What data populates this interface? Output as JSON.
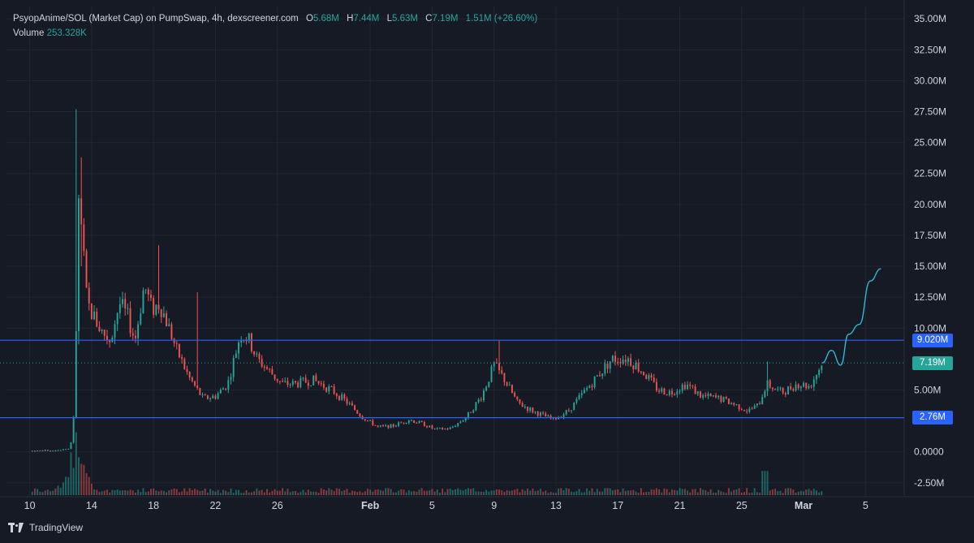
{
  "header": {
    "title": "PsyopAnime/SOL (Market Cap) on PumpSwap, 4h, dexscreener.com",
    "o_label": "O",
    "o_value": "5.68M",
    "h_label": "H",
    "h_value": "7.44M",
    "l_label": "L",
    "l_value": "5.63M",
    "c_label": "C",
    "c_value": "7.19M",
    "change": "1.51M (+26.60%)",
    "volume_label": "Volume",
    "volume_value": "253.328K"
  },
  "branding": {
    "logo_text": "TradingView",
    "icon": "tradingview-logo-icon"
  },
  "colors": {
    "background": "#161a25",
    "grid": "#222632",
    "up": "#26a69a",
    "down": "#ef5350",
    "level_line": "#2962ff",
    "projection": "#2fb7d6",
    "text": "#d1d4dc"
  },
  "chart_data": {
    "type": "candlestick",
    "y_unit": "market cap (USD)",
    "ylim": [
      -3500000,
      36000000
    ],
    "y_ticks": [
      "35.00M",
      "32.50M",
      "30.00M",
      "27.50M",
      "25.00M",
      "22.50M",
      "20.00M",
      "17.50M",
      "15.00M",
      "12.50M",
      "10.00M",
      "5.00M",
      "0.0000",
      "-2.50M"
    ],
    "y_tick_values": [
      35000000,
      32500000,
      30000000,
      27500000,
      25000000,
      22500000,
      20000000,
      17500000,
      15000000,
      12500000,
      10000000,
      5000000,
      0,
      -2500000
    ],
    "x_ticks": [
      "10",
      "14",
      "18",
      "22",
      "26",
      "Feb",
      "5",
      "9",
      "13",
      "17",
      "21",
      "25",
      "Mar",
      "5"
    ],
    "x_tick_days": [
      0,
      4,
      8,
      12,
      16,
      22,
      26,
      30,
      34,
      38,
      42,
      46,
      50,
      54
    ],
    "bold_x_ticks": [
      "Feb",
      "Mar"
    ],
    "x_range_days": [
      -1.5,
      56.5
    ],
    "grid": true,
    "candle_interval": "4h",
    "price_path_keypoints": [
      [
        0,
        0.08
      ],
      [
        1.5,
        0.12
      ],
      [
        2.5,
        0.25
      ],
      [
        2.8,
        1.2
      ],
      [
        3.0,
        10.0
      ],
      [
        3.1,
        20.5
      ],
      [
        3.35,
        18.0
      ],
      [
        3.7,
        12.0
      ],
      [
        4.1,
        11.0
      ],
      [
        4.6,
        9.8
      ],
      [
        5.2,
        9.0
      ],
      [
        5.8,
        12.0
      ],
      [
        6.3,
        11.0
      ],
      [
        6.8,
        9.0
      ],
      [
        7.4,
        13.5
      ],
      [
        7.9,
        11.5
      ],
      [
        8.4,
        12.0
      ],
      [
        9.0,
        10.0
      ],
      [
        9.5,
        8.2
      ],
      [
        10.3,
        6.0
      ],
      [
        11.2,
        4.3
      ],
      [
        12.0,
        4.5
      ],
      [
        12.8,
        5.5
      ],
      [
        13.2,
        7.5
      ],
      [
        13.6,
        9.5
      ],
      [
        14.1,
        9.2
      ],
      [
        14.7,
        7.5
      ],
      [
        15.5,
        6.5
      ],
      [
        16.3,
        5.5
      ],
      [
        17.2,
        5.5
      ],
      [
        18.3,
        5.8
      ],
      [
        19.5,
        5.0
      ],
      [
        20.5,
        4.0
      ],
      [
        21.5,
        2.8
      ],
      [
        22.5,
        2.0
      ],
      [
        23.5,
        2.1
      ],
      [
        24.5,
        2.6
      ],
      [
        25.3,
        2.3
      ],
      [
        26.2,
        1.8
      ],
      [
        27.2,
        1.9
      ],
      [
        28.2,
        2.8
      ],
      [
        29.2,
        4.5
      ],
      [
        30.0,
        7.0
      ],
      [
        30.6,
        6.0
      ],
      [
        31.5,
        4.0
      ],
      [
        32.5,
        3.3
      ],
      [
        33.8,
        2.6
      ],
      [
        34.8,
        3.3
      ],
      [
        35.6,
        4.5
      ],
      [
        36.6,
        6.0
      ],
      [
        37.6,
        7.5
      ],
      [
        38.6,
        7.6
      ],
      [
        39.6,
        6.5
      ],
      [
        40.6,
        5.0
      ],
      [
        41.4,
        4.8
      ],
      [
        42.4,
        5.5
      ],
      [
        43.4,
        4.5
      ],
      [
        44.6,
        4.3
      ],
      [
        45.6,
        3.8
      ],
      [
        46.4,
        3.3
      ],
      [
        47.1,
        3.8
      ],
      [
        47.6,
        5.5
      ],
      [
        48.6,
        4.8
      ],
      [
        49.6,
        5.5
      ],
      [
        50.4,
        5.3
      ],
      [
        51.2,
        7.19
      ]
    ],
    "notable_wicks": [
      {
        "day": 3.05,
        "high_millions": 27.7,
        "low_millions": 3.0
      },
      {
        "day": 3.3,
        "high_millions": 23.8,
        "low_millions": 15.0
      },
      {
        "day": 10.9,
        "high_millions": 12.9,
        "low_millions": 9.0
      },
      {
        "day": 8.4,
        "high_millions": 16.7,
        "low_millions": 12.0
      },
      {
        "day": 30.3,
        "high_millions": 9.0,
        "low_millions": 6.5
      },
      {
        "day": 47.6,
        "high_millions": 7.3,
        "low_millions": 4.5
      }
    ],
    "horizontal_levels": [
      {
        "value_millions": 9.02,
        "label": "9.020M",
        "style": "solid"
      },
      {
        "value_millions": 2.76,
        "label": "2.76M",
        "style": "solid"
      }
    ],
    "last_price": {
      "value_millions": 7.19,
      "label": "7.19M",
      "style": "dotted"
    },
    "projection_path": [
      [
        51.2,
        7.19
      ],
      [
        51.8,
        8.2
      ],
      [
        52.4,
        7.0
      ],
      [
        52.9,
        9.5
      ],
      [
        53.6,
        10.3
      ],
      [
        54.3,
        13.8
      ],
      [
        55.0,
        14.8
      ]
    ],
    "volume_profile_millions_volume": {
      "baseline_days": [
        0,
        51.2
      ],
      "spike_day": 3.0,
      "spike_relative": 1.0,
      "typical_relative": 0.08
    }
  }
}
